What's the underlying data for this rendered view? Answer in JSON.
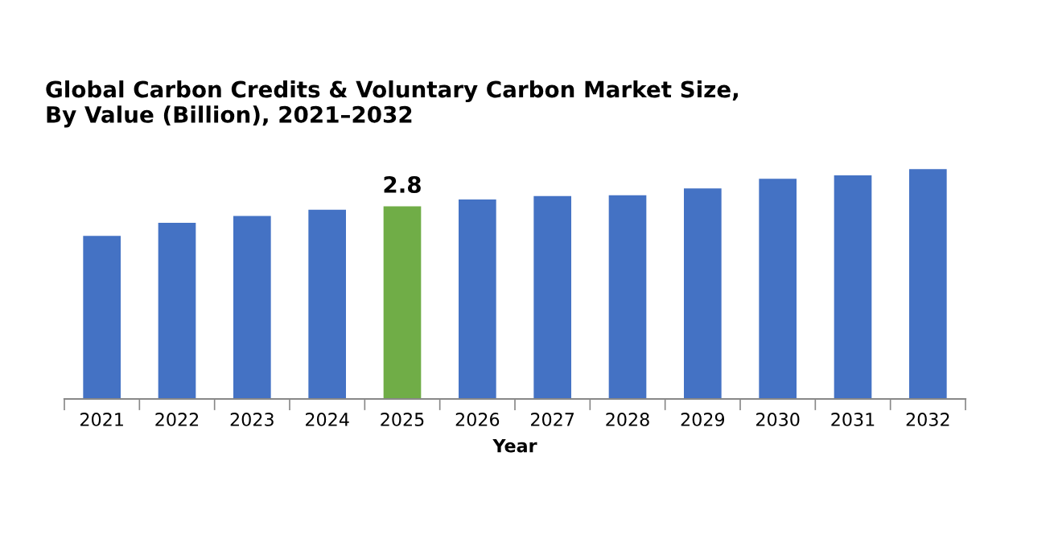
{
  "chart_data": {
    "type": "bar",
    "title": "Global Carbon Credits & Voluntary Carbon Market Size,\nBy Value (Billion), 2021–2032",
    "xlabel": "Year",
    "categories": [
      "2021",
      "2022",
      "2023",
      "2024",
      "2025",
      "2026",
      "2027",
      "2028",
      "2029",
      "2030",
      "2031",
      "2032"
    ],
    "values": [
      2.37,
      2.56,
      2.66,
      2.75,
      2.8,
      2.9,
      2.95,
      2.96,
      3.06,
      3.2,
      3.25,
      3.34
    ],
    "colors": [
      "#4472c4",
      "#4472c4",
      "#4472c4",
      "#4472c4",
      "#70ad47",
      "#4472c4",
      "#4472c4",
      "#4472c4",
      "#4472c4",
      "#4472c4",
      "#4472c4",
      "#4472c4"
    ],
    "value_labels": [
      null,
      null,
      null,
      null,
      "2.8",
      null,
      null,
      null,
      null,
      null,
      null,
      null
    ],
    "tick_labels": "x",
    "grid": false
  }
}
